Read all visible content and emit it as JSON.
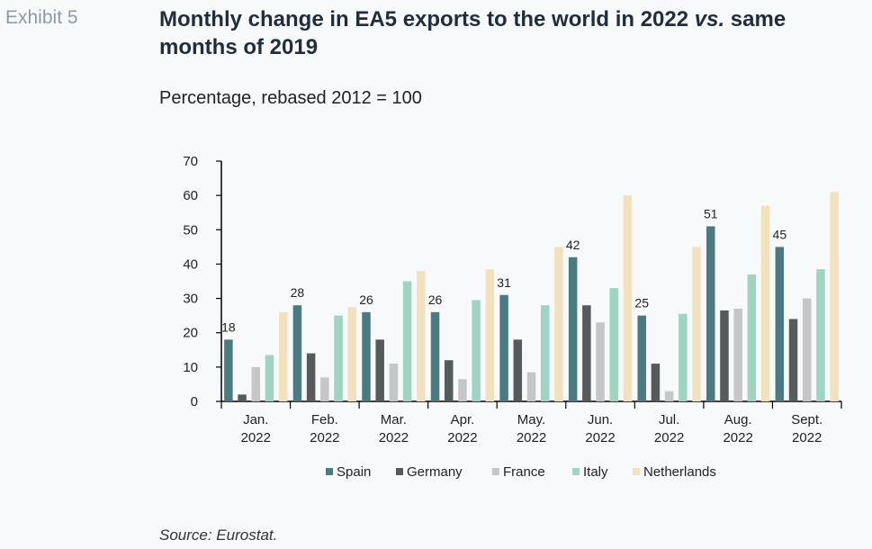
{
  "header": {
    "exhibit_label": "Exhibit 5",
    "title_part1": "Monthly change in EA5 exports to the world in 2022 ",
    "title_vs": "vs.",
    "title_part2": " same months of 2019",
    "subtitle": "Percentage, rebased 2012 = 100"
  },
  "footer": {
    "source": "Source: Eurostat."
  },
  "chart_data": {
    "type": "bar",
    "title": "",
    "xlabel": "",
    "ylabel": "",
    "ylim": [
      0,
      70
    ],
    "yticks": [
      0,
      10,
      20,
      30,
      40,
      50,
      60,
      70
    ],
    "grid": false,
    "legend_position": "bottom",
    "categories": [
      [
        "Jan.",
        "2022"
      ],
      [
        "Feb.",
        "2022"
      ],
      [
        "Mar.",
        "2022"
      ],
      [
        "Apr.",
        "2022"
      ],
      [
        "May.",
        "2022"
      ],
      [
        "Jun.",
        "2022"
      ],
      [
        "Jul.",
        "2022"
      ],
      [
        "Aug.",
        "2022"
      ],
      [
        "Sept.",
        "2022"
      ]
    ],
    "series": [
      {
        "name": "Spain",
        "color": "#4c7a82",
        "values": [
          18,
          28,
          26,
          26,
          31,
          42,
          25,
          51,
          45
        ]
      },
      {
        "name": "Germany",
        "color": "#555a5c",
        "values": [
          2,
          14,
          18,
          12,
          18,
          28,
          11,
          26.5,
          24
        ]
      },
      {
        "name": "France",
        "color": "#c4c6c8",
        "values": [
          10,
          7,
          11,
          6.5,
          8.5,
          23,
          3,
          27,
          30
        ]
      },
      {
        "name": "Italy",
        "color": "#9fd3c2",
        "values": [
          13.5,
          25,
          35,
          29.5,
          28,
          33,
          25.5,
          37,
          38.5
        ]
      },
      {
        "name": "Netherlands",
        "color": "#f1e1bf",
        "values": [
          26,
          27.5,
          38,
          38.5,
          45,
          60,
          45,
          57,
          61
        ]
      }
    ],
    "data_labels": {
      "series": "Spain",
      "values": [
        "18",
        "28",
        "26",
        "26",
        "31",
        "42",
        "25",
        "51",
        "45"
      ]
    }
  }
}
